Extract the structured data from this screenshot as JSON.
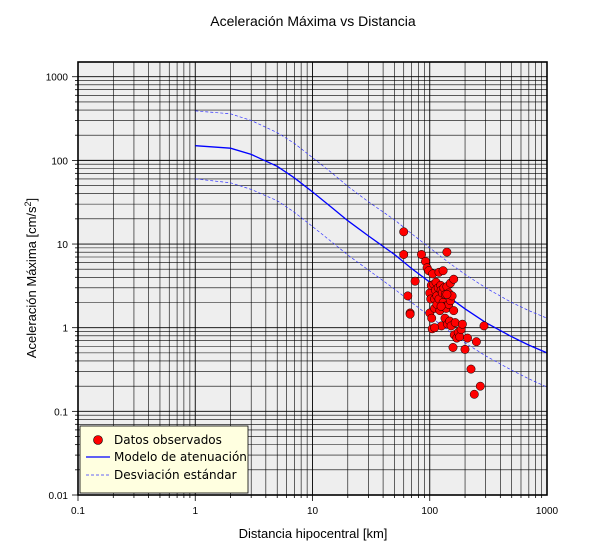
{
  "chart_data": {
    "type": "scatter",
    "title": "Aceleración Máxima vs Distancia",
    "xlabel": "Distancia hipocentral [km]",
    "ylabel_main": "Aceleración Máxima [cm/s",
    "ylabel_sup": "2",
    "ylabel_end": "]",
    "x_scale": "log",
    "y_scale": "log",
    "xlim": [
      0.1,
      1000
    ],
    "ylim": [
      0.01,
      1500
    ],
    "grid": true,
    "legend_position": "bottom-left",
    "x_ticks": [
      {
        "value": 0.1,
        "label": "0.1"
      },
      {
        "value": 1,
        "label": "1"
      },
      {
        "value": 10,
        "label": "10"
      },
      {
        "value": 100,
        "label": "100"
      },
      {
        "value": 1000,
        "label": "1000"
      }
    ],
    "y_ticks": [
      {
        "value": 0.01,
        "label": "0.01"
      },
      {
        "value": 0.1,
        "label": "0.1"
      },
      {
        "value": 1,
        "label": "1"
      },
      {
        "value": 10,
        "label": "10"
      },
      {
        "value": 100,
        "label": "100"
      },
      {
        "value": 1000,
        "label": "1000"
      }
    ],
    "colors": {
      "points": "#ff0000",
      "model": "#0000ff",
      "deviation": "#3333ff",
      "plot_background": "#eeeeee",
      "legend_background": "#ffffe0"
    },
    "series": [
      {
        "name": "Datos observados",
        "kind": "points",
        "x": [
          60,
          60,
          65,
          68,
          68,
          75,
          85,
          92,
          95,
          98,
          100,
          100,
          102,
          103,
          104,
          105,
          106,
          108,
          110,
          110,
          112,
          113,
          115,
          115,
          118,
          120,
          120,
          122,
          124,
          125,
          126,
          128,
          130,
          130,
          132,
          134,
          135,
          136,
          138,
          140,
          140,
          142,
          145,
          145,
          148,
          150,
          150,
          152,
          155,
          158,
          160,
          160,
          162,
          165,
          170,
          175,
          180,
          185,
          190,
          200,
          210,
          225,
          240,
          250,
          270,
          290,
          140,
          125,
          110
        ],
        "y": [
          14,
          7.5,
          2.4,
          1.5,
          1.45,
          3.6,
          7.5,
          6.2,
          5.2,
          4.8,
          2.6,
          1.5,
          2.2,
          3.2,
          1.3,
          0.97,
          4.4,
          3.3,
          2.2,
          1.7,
          2.8,
          3.5,
          2.4,
          1.9,
          3,
          4.6,
          2.2,
          1.6,
          3.2,
          2.8,
          1.05,
          2.6,
          4.8,
          2,
          3,
          1.8,
          1.3,
          2.5,
          1.7,
          8,
          3.1,
          1.1,
          2.6,
          1.9,
          1.2,
          3.4,
          2.1,
          1.05,
          2.4,
          0.58,
          3.8,
          1.6,
          0.82,
          1.15,
          0.75,
          0.88,
          0.78,
          0.95,
          1.1,
          0.55,
          0.75,
          0.32,
          0.16,
          0.68,
          0.2,
          1.05,
          2.5,
          1.8,
          1.0
        ]
      },
      {
        "name": "Modelo de atenuación",
        "kind": "solid-line",
        "x": [
          1,
          2,
          3,
          5,
          7,
          10,
          15,
          20,
          30,
          50,
          70,
          100,
          150,
          200,
          300,
          500,
          700,
          1000
        ],
        "y": [
          150,
          140,
          118,
          85,
          62,
          42,
          26.5,
          19,
          12.5,
          7.5,
          5.1,
          3.5,
          2.25,
          1.68,
          1.15,
          0.78,
          0.62,
          0.5
        ]
      },
      {
        "name": "Desviación estándar",
        "kind": "dashed-line",
        "x": [
          1,
          2,
          3,
          5,
          7,
          10,
          15,
          20,
          30,
          50,
          70,
          100,
          150,
          200,
          300,
          500,
          700,
          1000
        ],
        "y": [
          390,
          360,
          300,
          215,
          160,
          108,
          69,
          49,
          32,
          19.5,
          13.3,
          9,
          5.8,
          4.35,
          3,
          2,
          1.6,
          1.3
        ]
      },
      {
        "name": "",
        "kind": "dashed-line",
        "x": [
          1,
          2,
          3,
          5,
          7,
          10,
          15,
          20,
          30,
          50,
          70,
          100,
          150,
          200,
          300,
          500,
          700,
          1000
        ],
        "y": [
          60,
          54,
          45,
          33,
          24,
          16.2,
          10.3,
          7.4,
          4.9,
          2.9,
          2,
          1.37,
          0.88,
          0.66,
          0.46,
          0.31,
          0.245,
          0.195
        ]
      }
    ]
  }
}
